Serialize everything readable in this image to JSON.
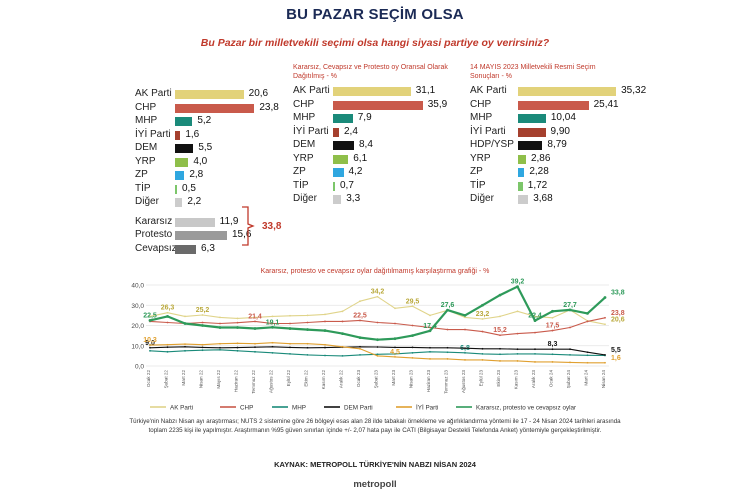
{
  "title": "BU PAZAR SEÇİM OLSA",
  "subtitle": "Bu Pazar bir milletvekili seçimi olsa hangi siyasi partiye oy verirsiniz?",
  "chart_data": [
    {
      "type": "bar",
      "title": "",
      "categories": [
        "AK Parti",
        "CHP",
        "MHP",
        "İYİ Parti",
        "DEM",
        "YRP",
        "ZP",
        "TİP",
        "Diğer",
        "Kararsız",
        "Protesto",
        "Cevapsız"
      ],
      "values": [
        20.6,
        23.8,
        5.2,
        1.6,
        5.5,
        4.0,
        2.8,
        0.5,
        2.2,
        11.9,
        15.6,
        6.3
      ],
      "labels": [
        "20,6",
        "23,8",
        "5,2",
        "1,6",
        "5,5",
        "4,0",
        "2,8",
        "0,5",
        "2,2",
        "11,9",
        "15,6",
        "6,3"
      ],
      "colors": [
        "#e2d27a",
        "#c95a4b",
        "#1a8a7a",
        "#a5402e",
        "#111111",
        "#8fbf4a",
        "#2fa7e0",
        "#7cc66a",
        "#cccccc",
        "#c8c8c8",
        "#9a9a9a",
        "#6a6a6a"
      ],
      "group_total_label": "33,8"
    },
    {
      "type": "bar",
      "title": "Kararsız, Cevapsız ve Protesto oy Oransal Olarak Dağıtılmış - %",
      "categories": [
        "AK Parti",
        "CHP",
        "MHP",
        "İYİ Parti",
        "DEM",
        "YRP",
        "ZP",
        "TİP",
        "Diğer"
      ],
      "values": [
        31.1,
        35.9,
        7.9,
        2.4,
        8.4,
        6.1,
        4.2,
        0.7,
        3.3
      ],
      "labels": [
        "31,1",
        "35,9",
        "7,9",
        "2,4",
        "8,4",
        "6,1",
        "4,2",
        "0,7",
        "3,3"
      ],
      "colors": [
        "#e2d27a",
        "#c95a4b",
        "#1a8a7a",
        "#a5402e",
        "#111111",
        "#8fbf4a",
        "#2fa7e0",
        "#7cc66a",
        "#cccccc"
      ]
    },
    {
      "type": "bar",
      "title": "14 MAYIS 2023 Milletvekili Resmi Seçim Sonuçları - %",
      "categories": [
        "AK Parti",
        "CHP",
        "MHP",
        "İYİ Parti",
        "HDP/YSP",
        "YRP",
        "ZP",
        "TİP",
        "Diğer"
      ],
      "values": [
        35.32,
        25.41,
        10.04,
        9.9,
        8.79,
        2.86,
        2.28,
        1.72,
        3.68
      ],
      "labels": [
        "35,32",
        "25,41",
        "10,04",
        "9,90",
        "8,79",
        "2,86",
        "2,28",
        "1,72",
        "3,68"
      ],
      "colors": [
        "#e2d27a",
        "#c95a4b",
        "#1a8a7a",
        "#a5402e",
        "#111111",
        "#8fbf4a",
        "#2fa7e0",
        "#7cc66a",
        "#cccccc"
      ]
    },
    {
      "type": "line",
      "title": "Kararsız, protesto ve cevapsız oylar dağıtılmamış karşılaştırma grafiği - %",
      "x": [
        "Ocak 22",
        "Şubat 22",
        "Mart 22",
        "Nisan 22",
        "Mayıs 22",
        "Haziran 22",
        "Temmuz 22",
        "Ağustos 22",
        "Eylül 22",
        "Ekim 22",
        "Kasım 22",
        "Aralık 22",
        "Ocak 23",
        "Şubat 23",
        "Mart 23",
        "Nisan 23",
        "Haziran 23",
        "Temmuz 23",
        "Ağustos 23",
        "Eylül 23",
        "Ekim 23",
        "Kasım 23",
        "Aralık 23",
        "Ocak 24",
        "Şubat 24",
        "Mart 24",
        "Nisan 24"
      ],
      "ylim": [
        0,
        40
      ],
      "yticks": [
        "0,0",
        "10,0",
        "20,0",
        "30,0",
        "40,0"
      ],
      "series": [
        {
          "name": "AK Parti",
          "color": "#e0d48a",
          "values": [
            24.5,
            26.3,
            24.5,
            25.2,
            24,
            23.5,
            24,
            24.5,
            24.8,
            25,
            25.5,
            27,
            32,
            34.2,
            28.5,
            29.5,
            25,
            27.5,
            24,
            23.2,
            24.5,
            27,
            24.5,
            23.8,
            27.7,
            22.3,
            20.6
          ],
          "labels": [
            {
              "i": 1,
              "t": "26,3"
            },
            {
              "i": 3,
              "t": "25,2"
            },
            {
              "i": 13,
              "t": "34,2"
            },
            {
              "i": 15,
              "t": "29,5"
            },
            {
              "i": 19,
              "t": "23,2"
            },
            {
              "i": 26,
              "t": "20,6"
            }
          ]
        },
        {
          "name": "CHP",
          "color": "#c95a4b",
          "values": [
            22,
            21.5,
            21,
            21.5,
            21,
            21.4,
            22,
            21,
            21,
            21.5,
            22,
            22,
            22.5,
            21.5,
            21,
            20,
            19,
            18,
            18,
            17,
            15.2,
            16,
            16.5,
            17.5,
            19,
            22,
            23.8
          ],
          "labels": [
            {
              "i": 6,
              "t": "21,4"
            },
            {
              "i": 12,
              "t": "22,5"
            },
            {
              "i": 20,
              "t": "15,2"
            },
            {
              "i": 23,
              "t": "17,5"
            },
            {
              "i": 26,
              "t": "23,8"
            }
          ]
        },
        {
          "name": "MHP",
          "color": "#1a8a7a",
          "values": [
            7.5,
            7,
            7.5,
            7.8,
            8,
            7.5,
            7,
            6.5,
            6,
            5.5,
            5.2,
            5,
            5.5,
            5.8,
            6,
            6.5,
            7,
            6.8,
            6.5,
            6,
            5.8,
            6,
            6,
            5.8,
            5.5,
            5.3,
            5.2
          ],
          "labels": [
            {
              "i": 18,
              "t": "6,8"
            }
          ]
        },
        {
          "name": "DEM Parti",
          "color": "#111111",
          "values": [
            9,
            9.3,
            9.5,
            9.2,
            9,
            9.1,
            9.3,
            9.5,
            9.2,
            9,
            9.1,
            9.3,
            9.5,
            9.4,
            9.2,
            9.2,
            9,
            9,
            8.8,
            8.5,
            8.5,
            8.3,
            8.3,
            8.3,
            8.3,
            6.8,
            5.5
          ],
          "labels": [
            {
              "i": 0,
              "t": "9,0"
            },
            {
              "i": 23,
              "t": "8,3"
            },
            {
              "i": 26,
              "t": "5,5"
            }
          ]
        },
        {
          "name": "İYİ Parti",
          "color": "#e0a030",
          "values": [
            10.3,
            10.5,
            10.8,
            10.5,
            11,
            11.2,
            11,
            11.5,
            11,
            11,
            10.5,
            9.5,
            8.5,
            5,
            4.5,
            4,
            3.5,
            3.5,
            3,
            3,
            2.5,
            2.5,
            2,
            2,
            1.8,
            1.6,
            1.6
          ],
          "labels": [
            {
              "i": 0,
              "t": "10,3"
            },
            {
              "i": 14,
              "t": "4,5"
            },
            {
              "i": 26,
              "t": "1,6"
            }
          ]
        },
        {
          "name": "Kararsız, protesto ve cevapsız oylar",
          "color": "#2e9a5a",
          "values": [
            22.5,
            24.5,
            21,
            20,
            19,
            19,
            18.5,
            19.1,
            18.5,
            18,
            17.5,
            16,
            14,
            13,
            13.5,
            15,
            17.4,
            27.6,
            25,
            30,
            35,
            39.2,
            22.4,
            27,
            27.7,
            26,
            33.8
          ],
          "labels": [
            {
              "i": 0,
              "t": "22,5"
            },
            {
              "i": 7,
              "t": "19,1"
            },
            {
              "i": 16,
              "t": "17,4"
            },
            {
              "i": 17,
              "t": "27,6"
            },
            {
              "i": 21,
              "t": "39,2"
            },
            {
              "i": 22,
              "t": "22,4"
            },
            {
              "i": 24,
              "t": "27,7"
            },
            {
              "i": 26,
              "t": "33,8"
            }
          ]
        }
      ]
    }
  ],
  "note": "Türkiye'nin Nabzı Nisan ayı araştırması; NUTS 2 sistemine göre 26 bölgeyi esas alan 28 ilde tabakalı örnekleme ve ağırlıklandırma yöntemi ile 17 - 24 Nisan 2024 tarihleri arasında toplam 2235 kişi ile yapılmıştır. Araştırmanın %95 güven sınırları içinde +/- 2,07 hata payı ile CATI (Bilgisayar Destekli Telefonda Anket) yöntemiyle gerçekleştirilmiştir.",
  "source": "KAYNAK: METROPOLL TÜRKİYE'NİN NABZI NİSAN 2024",
  "logo": {
    "part1": "metro",
    "part2": "poll"
  }
}
